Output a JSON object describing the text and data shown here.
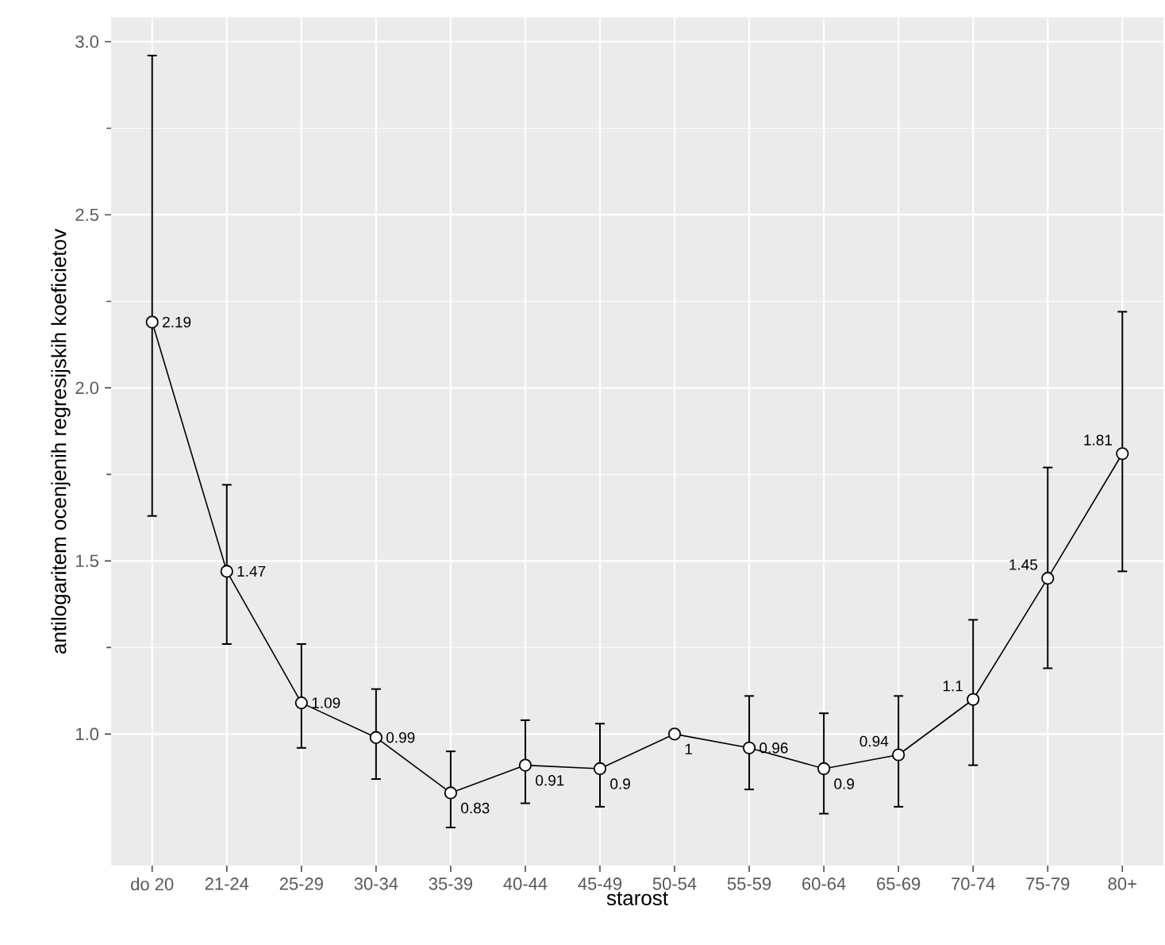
{
  "chart_data": {
    "type": "line",
    "xlabel": "starost",
    "ylabel": "antilogaritem ocenjenih regresijskih koeficietov",
    "categories": [
      "do 20",
      "21-24",
      "25-29",
      "30-34",
      "35-39",
      "40-44",
      "45-49",
      "50-54",
      "55-59",
      "60-64",
      "65-69",
      "70-74",
      "75-79",
      "80+"
    ],
    "values": [
      2.19,
      1.47,
      1.09,
      0.99,
      0.83,
      0.91,
      0.9,
      1,
      0.96,
      0.9,
      0.94,
      1.1,
      1.45,
      1.81
    ],
    "errors": [
      [
        1.63,
        2.96
      ],
      [
        1.26,
        1.72
      ],
      [
        0.96,
        1.26
      ],
      [
        0.87,
        1.13
      ],
      [
        0.73,
        0.95
      ],
      [
        0.8,
        1.04
      ],
      [
        0.79,
        1.03
      ],
      null,
      [
        0.84,
        1.11
      ],
      [
        0.77,
        1.06
      ],
      [
        0.79,
        1.11
      ],
      [
        0.91,
        1.33
      ],
      [
        1.19,
        1.77
      ],
      [
        1.47,
        2.22
      ]
    ],
    "color": "#000000",
    "marker": "circle",
    "line_style": "solid",
    "data_labels": true,
    "grid": true,
    "ylim": [
      0.62,
      3.07
    ],
    "yticks": [
      {
        "value": 1,
        "label": "1.0"
      },
      {
        "value": 1.5,
        "label": "1.5"
      },
      {
        "value": 2,
        "label": "2.0"
      },
      {
        "value": 2.5,
        "label": "2.5"
      },
      {
        "value": 3,
        "label": "3.0"
      }
    ]
  }
}
